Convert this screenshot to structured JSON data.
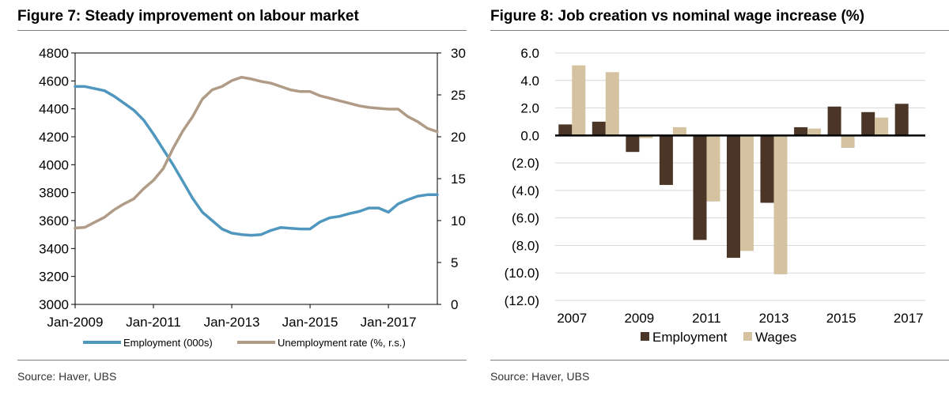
{
  "colors": {
    "employment_line": "#4f97be",
    "unemployment_line": "#b09c86",
    "employment_bar": "#4a3527",
    "wages_bar": "#d4c2a0"
  },
  "figures": [
    {
      "title": "Figure 7: Steady improvement on labour market",
      "source": "Source:  Haver, UBS"
    },
    {
      "title": "Figure 8: Job creation vs nominal wage increase (%)",
      "source": "Source:  Haver, UBS"
    }
  ],
  "chart_data": [
    {
      "type": "line",
      "title": "Figure 7: Steady improvement on labour market",
      "xlabel": "",
      "ylabel": "",
      "y2label": "",
      "x_ticks": [
        "Jan-2009",
        "Jan-2011",
        "Jan-2013",
        "Jan-2015",
        "Jan-2017"
      ],
      "ylim": [
        3000,
        4800
      ],
      "y_ticks": [
        "3000",
        "3200",
        "3400",
        "3600",
        "3800",
        "4000",
        "4200",
        "4400",
        "4600",
        "4800"
      ],
      "y2lim": [
        0,
        30
      ],
      "y2_ticks": [
        "0",
        "5",
        "10",
        "15",
        "20",
        "25",
        "30"
      ],
      "x_range": [
        2009.0,
        2018.25
      ],
      "grid": false,
      "legend": "bottom",
      "series": [
        {
          "name": "Employment (000s)",
          "axis": "left",
          "x": [
            2009.0,
            2009.25,
            2009.5,
            2009.75,
            2010.0,
            2010.25,
            2010.5,
            2010.75,
            2011.0,
            2011.25,
            2011.5,
            2011.75,
            2012.0,
            2012.25,
            2012.5,
            2012.75,
            2013.0,
            2013.25,
            2013.5,
            2013.75,
            2014.0,
            2014.25,
            2014.5,
            2014.75,
            2015.0,
            2015.25,
            2015.5,
            2015.75,
            2016.0,
            2016.25,
            2016.5,
            2016.75,
            2017.0,
            2017.25,
            2017.5,
            2017.75,
            2018.0,
            2018.25
          ],
          "values": [
            4560,
            4560,
            4545,
            4530,
            4490,
            4440,
            4390,
            4320,
            4220,
            4110,
            4000,
            3880,
            3760,
            3660,
            3600,
            3540,
            3510,
            3500,
            3495,
            3500,
            3530,
            3550,
            3545,
            3540,
            3540,
            3590,
            3620,
            3630,
            3650,
            3665,
            3690,
            3690,
            3660,
            3720,
            3750,
            3775,
            3785,
            3785
          ]
        },
        {
          "name": "Unemployment rate (%, r.s.)",
          "axis": "right",
          "x": [
            2009.0,
            2009.25,
            2009.5,
            2009.75,
            2010.0,
            2010.25,
            2010.5,
            2010.75,
            2011.0,
            2011.25,
            2011.5,
            2011.75,
            2012.0,
            2012.25,
            2012.5,
            2012.75,
            2013.0,
            2013.25,
            2013.5,
            2013.75,
            2014.0,
            2014.25,
            2014.5,
            2014.75,
            2015.0,
            2015.25,
            2015.5,
            2015.75,
            2016.0,
            2016.25,
            2016.5,
            2016.75,
            2017.0,
            2017.25,
            2017.5,
            2017.75,
            2018.0,
            2018.25
          ],
          "values": [
            9.1,
            9.2,
            9.8,
            10.4,
            11.3,
            12.0,
            12.6,
            13.8,
            14.8,
            16.2,
            18.6,
            20.7,
            22.4,
            24.5,
            25.6,
            26.0,
            26.7,
            27.1,
            26.9,
            26.6,
            26.4,
            26.0,
            25.6,
            25.4,
            25.4,
            24.9,
            24.6,
            24.3,
            24.0,
            23.7,
            23.5,
            23.4,
            23.3,
            23.3,
            22.4,
            21.8,
            21.0,
            20.6
          ]
        }
      ]
    },
    {
      "type": "bar",
      "title": "Figure 8: Job creation vs nominal wage increase (%)",
      "xlabel": "",
      "ylabel": "",
      "categories": [
        "2007",
        "2008",
        "2009",
        "2010",
        "2011",
        "2012",
        "2013",
        "2014",
        "2015",
        "2016",
        "2017"
      ],
      "x_tick_labels": [
        "2007",
        "",
        "2009",
        "",
        "2011",
        "",
        "2013",
        "",
        "2015",
        "",
        "2017"
      ],
      "ylim": [
        -12,
        6
      ],
      "y_ticks": [
        "6.0",
        "4.0",
        "2.0",
        "0.0",
        "(2.0)",
        "(4.0)",
        "(6.0)",
        "(8.0)",
        "(10.0)",
        "(12.0)"
      ],
      "grid": true,
      "legend": "bottom",
      "series": [
        {
          "name": "Employment",
          "values": [
            0.8,
            1.0,
            -1.2,
            -3.6,
            -7.6,
            -8.9,
            -4.9,
            0.6,
            2.1,
            1.7,
            2.3
          ]
        },
        {
          "name": "Wages",
          "values": [
            5.1,
            4.6,
            -0.2,
            0.6,
            -4.8,
            -8.4,
            -10.1,
            0.5,
            -0.9,
            1.3,
            null
          ]
        }
      ]
    }
  ]
}
